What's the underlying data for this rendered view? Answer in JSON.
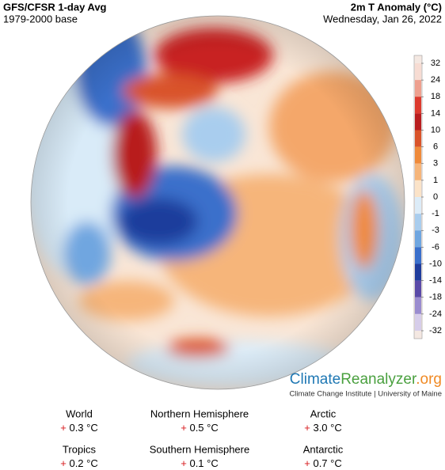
{
  "header": {
    "title": "GFS/CFSR 1-day Avg",
    "subtitle": "1979-2000 base",
    "variable": "2m T Anomaly (°C)",
    "date": "Wednesday, Jan 26, 2022"
  },
  "colorbar": {
    "ticks": [
      "32",
      "24",
      "18",
      "14",
      "10",
      "6",
      "3",
      "1",
      "0",
      "-1",
      "-3",
      "-6",
      "-10",
      "-14",
      "-18",
      "-24",
      "-32"
    ],
    "colors": [
      "#f7dcd3",
      "#eea08f",
      "#dc3a2e",
      "#b81d1f",
      "#d9532a",
      "#ef8a3a",
      "#f6b57a",
      "#fbe3c8",
      "#dcecf8",
      "#a9cdee",
      "#6fa6e0",
      "#3a6fcb",
      "#1f3c9c",
      "#5a4aa8",
      "#9a8ccf",
      "#d6cdea"
    ]
  },
  "logo": {
    "part1": "Climate",
    "part2": "Reanalyzer",
    "part3": ".org",
    "credit": "Climate Change Institute | University of Maine"
  },
  "stats": [
    {
      "name": "World",
      "sign": "+",
      "value": "0.3 °C"
    },
    {
      "name": "Northern Hemisphere",
      "sign": "+",
      "value": "0.5 °C"
    },
    {
      "name": "Arctic",
      "sign": "+",
      "value": "3.0 °C"
    },
    {
      "name": "Tropics",
      "sign": "+",
      "value": "0.2 °C"
    },
    {
      "name": "Southern Hemisphere",
      "sign": "+",
      "value": "0.1 °C"
    },
    {
      "name": "Antarctic",
      "sign": "+",
      "value": "0.7 °C"
    }
  ]
}
